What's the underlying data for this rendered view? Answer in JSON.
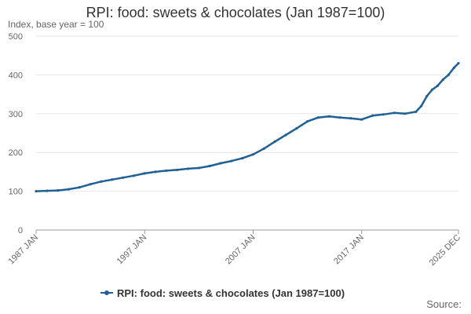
{
  "chart_data": {
    "type": "line",
    "title": "RPI: food: sweets & chocolates (Jan 1987=100)",
    "subtitle": "Index, base year = 100",
    "source": "Source:",
    "ylim": [
      0,
      500
    ],
    "y_ticks": [
      0,
      100,
      200,
      300,
      400,
      500
    ],
    "x_range": [
      "1987 JAN",
      "2025 DEC"
    ],
    "x_ticks": [
      {
        "date": "1987 JAN",
        "label": "1987 JAN"
      },
      {
        "date": "1997 JAN",
        "label": "1997 JAN"
      },
      {
        "date": "2007 JAN",
        "label": "2007 JAN"
      },
      {
        "date": "2017 JAN",
        "label": "2017 JAN"
      },
      {
        "date": "2025 DEC",
        "label": "2025 DEC"
      }
    ],
    "grid": "horizontal",
    "legend_position": "bottom",
    "series": [
      {
        "name": "RPI: food: sweets & chocolates (Jan 1987=100)",
        "color": "#206095",
        "points": [
          {
            "x": "1987 JAN",
            "y": 100
          },
          {
            "x": "1988 JAN",
            "y": 101
          },
          {
            "x": "1989 JAN",
            "y": 102
          },
          {
            "x": "1990 JAN",
            "y": 105
          },
          {
            "x": "1991 JAN",
            "y": 110
          },
          {
            "x": "1992 JAN",
            "y": 118
          },
          {
            "x": "1993 JAN",
            "y": 125
          },
          {
            "x": "1994 JAN",
            "y": 130
          },
          {
            "x": "1995 JAN",
            "y": 135
          },
          {
            "x": "1996 JAN",
            "y": 140
          },
          {
            "x": "1997 JAN",
            "y": 146
          },
          {
            "x": "1998 JAN",
            "y": 150
          },
          {
            "x": "1999 JAN",
            "y": 153
          },
          {
            "x": "2000 JAN",
            "y": 155
          },
          {
            "x": "2001 JAN",
            "y": 158
          },
          {
            "x": "2002 JAN",
            "y": 160
          },
          {
            "x": "2003 JAN",
            "y": 165
          },
          {
            "x": "2004 JAN",
            "y": 172
          },
          {
            "x": "2005 JAN",
            "y": 178
          },
          {
            "x": "2006 JAN",
            "y": 185
          },
          {
            "x": "2007 JAN",
            "y": 195
          },
          {
            "x": "2008 JAN",
            "y": 210
          },
          {
            "x": "2009 JAN",
            "y": 228
          },
          {
            "x": "2010 JAN",
            "y": 245
          },
          {
            "x": "2011 JAN",
            "y": 262
          },
          {
            "x": "2012 JAN",
            "y": 280
          },
          {
            "x": "2013 JAN",
            "y": 290
          },
          {
            "x": "2014 JAN",
            "y": 293
          },
          {
            "x": "2015 JAN",
            "y": 290
          },
          {
            "x": "2016 JAN",
            "y": 288
          },
          {
            "x": "2017 JAN",
            "y": 285
          },
          {
            "x": "2018 JAN",
            "y": 295
          },
          {
            "x": "2019 JAN",
            "y": 298
          },
          {
            "x": "2020 JAN",
            "y": 302
          },
          {
            "x": "2021 JAN",
            "y": 300
          },
          {
            "x": "2022 JAN",
            "y": 305
          },
          {
            "x": "2022 JUL",
            "y": 320
          },
          {
            "x": "2023 JAN",
            "y": 345
          },
          {
            "x": "2023 JUL",
            "y": 362
          },
          {
            "x": "2024 JAN",
            "y": 372
          },
          {
            "x": "2024 JUL",
            "y": 388
          },
          {
            "x": "2025 JAN",
            "y": 400
          },
          {
            "x": "2025 JUL",
            "y": 418
          },
          {
            "x": "2025 DEC",
            "y": 430
          }
        ]
      }
    ]
  }
}
